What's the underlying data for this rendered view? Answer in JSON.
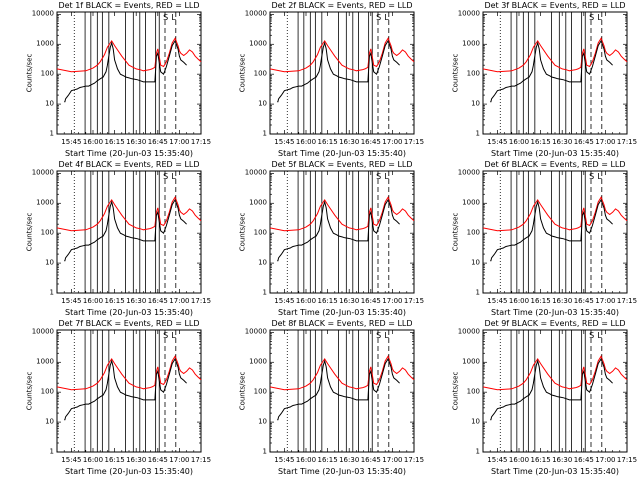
{
  "panels": [
    {
      "title": "Det 1f BLACK = Events, RED = LLD",
      "ylabel": "Counts/sec",
      "xlabel": "Start Time (20-Jun-03 15:35:40)"
    },
    {
      "title": "Det 2f BLACK = Events, RED = LLD",
      "ylabel": "Counts/sec",
      "xlabel": "Start Time (20-Jun-03 15:35:40)"
    },
    {
      "title": "Det 3f BLACK = Events, RED = LLD",
      "ylabel": "Counts/sec",
      "xlabel": "Start Time (20-Jun-03 15:35:40)"
    },
    {
      "title": "Det 4f BLACK = Events, RED = LLD",
      "ylabel": "Counts/sec",
      "xlabel": "Start Time (20-Jun-03 15:35:40)"
    },
    {
      "title": "Det 5f BLACK = Events, RED = LLD",
      "ylabel": "Counts/sec",
      "xlabel": "Start Time (20-Jun-03 15:35:40)"
    },
    {
      "title": "Det 6f BLACK = Events, RED = LLD",
      "ylabel": "Counts/sec",
      "xlabel": "Start Time (20-Jun-03 15:35:40)"
    },
    {
      "title": "Det 7f BLACK = Events, RED = LLD",
      "ylabel": "Counts/sec",
      "xlabel": "Start Time (20-Jun-03 15:35:40)"
    },
    {
      "title": "Det 8f BLACK = Events, RED = LLD",
      "ylabel": "Counts/sec",
      "xlabel": "Start Time (20-Jun-03 15:35:40)"
    },
    {
      "title": "Det 9f BLACK = Events, RED = LLD",
      "ylabel": "Counts/sec",
      "xlabel": "Start Time (20-Jun-03 15:35:40)"
    }
  ],
  "chart_data": {
    "type": "line",
    "grid": "3x3 small multiples, log y axis",
    "xlim_minutes": [
      0,
      100
    ],
    "x_tick_minutes": [
      10,
      25,
      40,
      55,
      70,
      85,
      100
    ],
    "x_tick_labels": [
      "15:45",
      "16:00",
      "16:15",
      "16:30",
      "16:45",
      "17:00",
      "17:15"
    ],
    "ylim": [
      1,
      12000
    ],
    "y_tick_values": [
      1,
      10,
      100,
      1000,
      10000
    ],
    "y_tick_labels": [
      "1",
      "10",
      "100",
      "1000",
      "10000"
    ],
    "marker_lines": {
      "dotted_minute": 12,
      "solid_minutes": [
        19.5,
        23.5,
        28,
        31.5,
        36,
        47.5,
        53,
        57.5,
        61.5,
        68.5,
        71
      ],
      "dashed_minutes": [
        75,
        82.5
      ],
      "text_flags": [
        {
          "label": "S",
          "minute": 75.5
        },
        {
          "label": "L",
          "minute": 81
        }
      ]
    },
    "series": [
      {
        "name": "LLD",
        "color": "#ff0000",
        "minutes": [
          0,
          10,
          20,
          25,
          28,
          30,
          33,
          35,
          38,
          40,
          45,
          50,
          55,
          58,
          60,
          62,
          64,
          66,
          68,
          69,
          70,
          71,
          72,
          74,
          76,
          78,
          80,
          82,
          84,
          85,
          86,
          88,
          90,
          92,
          94,
          96,
          98,
          100
        ],
        "values": [
          150,
          120,
          130,
          160,
          200,
          260,
          450,
          800,
          1300,
          900,
          400,
          200,
          150,
          140,
          130,
          135,
          140,
          150,
          170,
          500,
          700,
          400,
          200,
          180,
          260,
          500,
          1100,
          1600,
          900,
          600,
          500,
          420,
          500,
          650,
          550,
          400,
          320,
          260
        ]
      },
      {
        "name": "Events",
        "color": "#000000",
        "minutes": [
          5,
          5.5,
          6,
          8,
          10,
          12,
          14,
          15,
          16,
          18,
          20,
          22,
          24,
          26,
          28,
          30,
          32,
          34,
          35,
          36,
          37,
          38,
          39,
          40,
          42,
          44,
          46,
          48,
          50,
          52,
          54,
          56,
          58,
          60,
          62,
          64,
          66,
          68,
          69,
          70,
          71,
          72,
          74,
          76,
          78,
          80,
          82,
          84,
          85,
          86,
          88,
          90
        ],
        "values": [
          12,
          12,
          15,
          20,
          28,
          30,
          32,
          34,
          36,
          38,
          40,
          40,
          45,
          50,
          60,
          70,
          80,
          120,
          200,
          400,
          800,
          1100,
          700,
          300,
          150,
          100,
          90,
          80,
          75,
          70,
          68,
          65,
          60,
          55,
          55,
          55,
          55,
          55,
          400,
          500,
          250,
          120,
          100,
          180,
          400,
          900,
          1300,
          700,
          400,
          300,
          250,
          200
        ]
      }
    ]
  }
}
